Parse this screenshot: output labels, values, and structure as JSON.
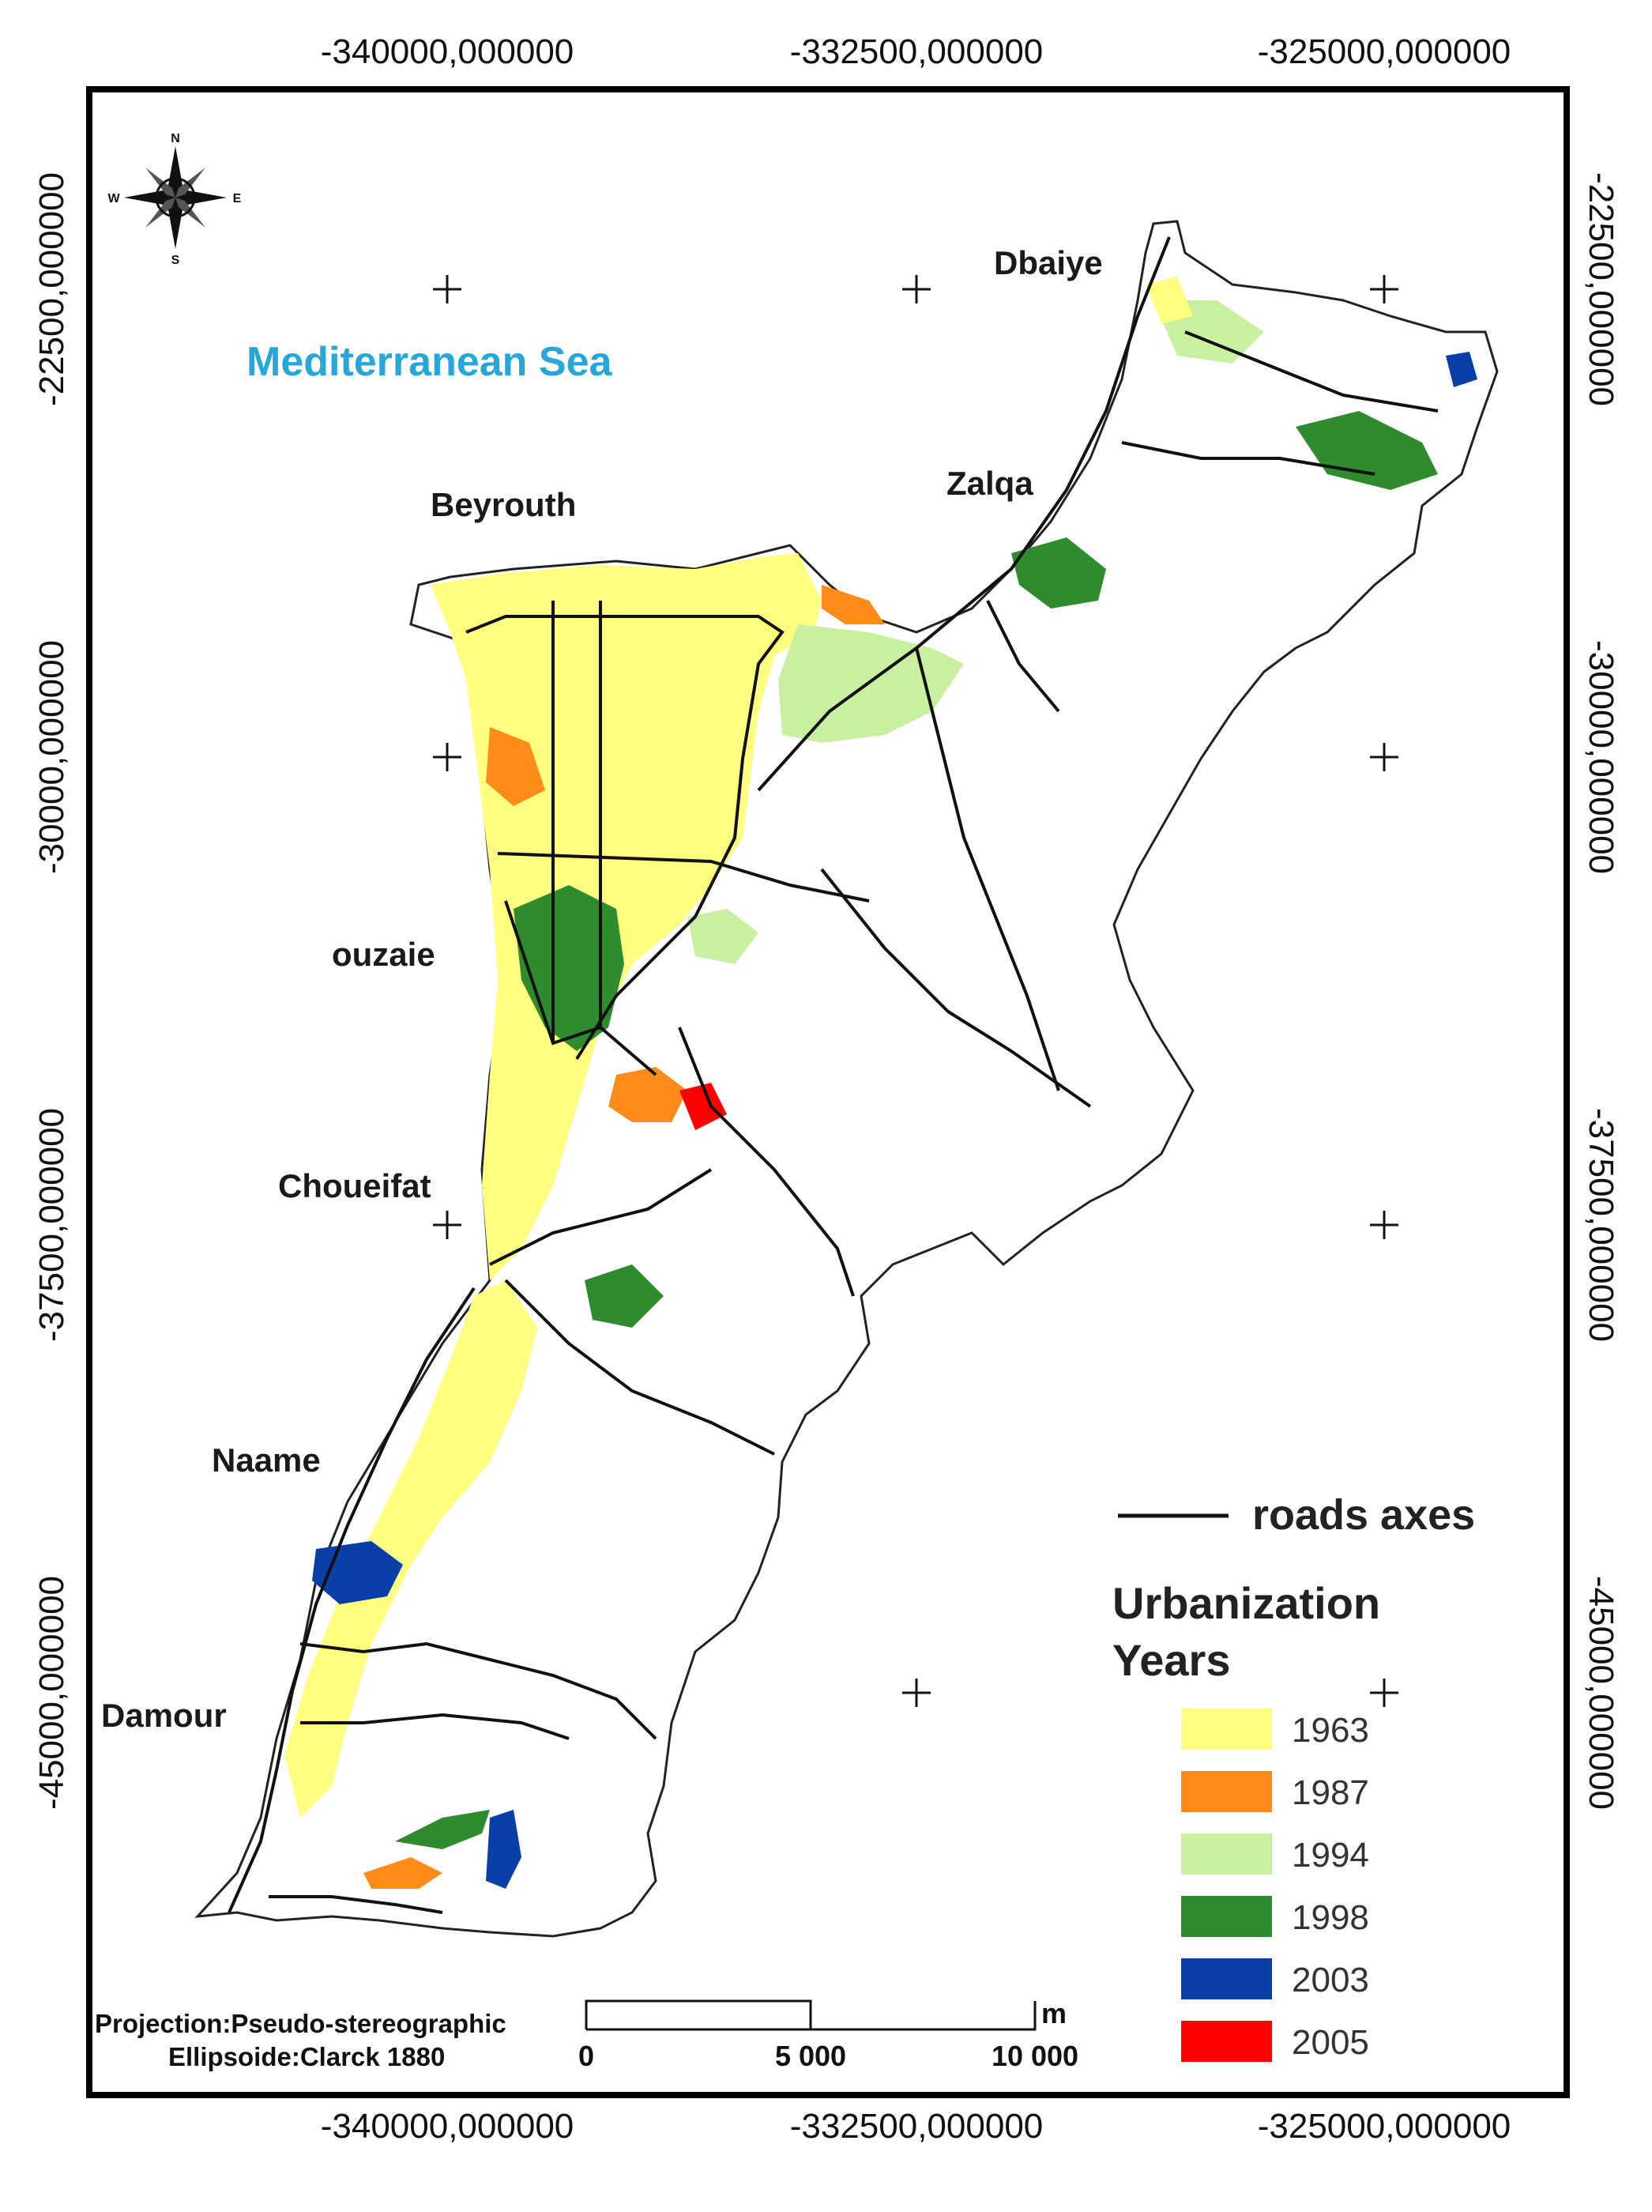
{
  "map": {
    "projection": "Projection:Pseudo-stereographic",
    "ellipsoid": "Ellipsoide:Clarck 1880",
    "sea_label": "Mediterranean Sea",
    "places": [
      "Dbaiye",
      "Zalqa",
      "Beyrouth",
      "ouzaie",
      "Choueifat",
      "Naame",
      "Damour"
    ],
    "x_ticks": [
      "-340000,000000",
      "-332500,000000",
      "-325000,000000"
    ],
    "y_ticks": [
      "-22500,000000",
      "-30000,000000",
      "-37500,000000",
      "-45000,000000"
    ],
    "compass": {
      "n": "N",
      "s": "S",
      "e": "E",
      "w": "W"
    },
    "scale": {
      "unit": "m",
      "labels": [
        "0",
        "5 000",
        "10 000"
      ]
    },
    "legend": {
      "roads": "roads axes",
      "title_line1": "Urbanization",
      "title_line2": "Years",
      "items": [
        {
          "label": "1963",
          "color": "#ffff80"
        },
        {
          "label": "1987",
          "color": "#ff8c1a"
        },
        {
          "label": "1994",
          "color": "#c8f0a0"
        },
        {
          "label": "1998",
          "color": "#2e8b2e"
        },
        {
          "label": "2003",
          "color": "#0a3fa8"
        },
        {
          "label": "2005",
          "color": "#ff0000"
        }
      ]
    }
  }
}
